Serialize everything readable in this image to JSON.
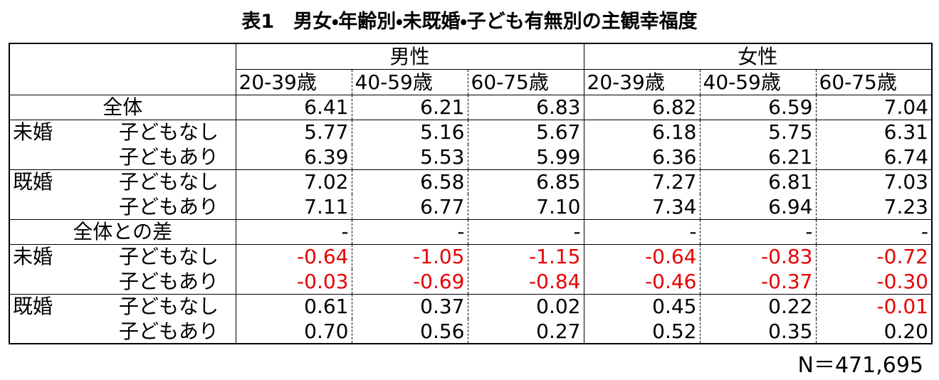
{
  "title": "表1　男女・年齢別・未既婚・子ども有無別の主観幸福度",
  "header": {
    "groups": [
      {
        "name": "男性",
        "ages": [
          "20-39歳",
          "40-59歳",
          "60-75歳"
        ]
      },
      {
        "name": "女性",
        "ages": [
          "20-39歳",
          "40-59歳",
          "60-75歳"
        ]
      }
    ]
  },
  "sections": [
    {
      "label": "全体",
      "values": [
        "6.41",
        "6.21",
        "6.83",
        "6.82",
        "6.59",
        "7.04"
      ]
    },
    {
      "label": "未婚",
      "rows": [
        {
          "label": "子どもなし",
          "values": [
            "5.77",
            "5.16",
            "5.67",
            "6.18",
            "5.75",
            "6.31"
          ]
        },
        {
          "label": "子どもあり",
          "values": [
            "6.39",
            "5.53",
            "5.99",
            "6.36",
            "6.21",
            "6.74"
          ]
        }
      ]
    },
    {
      "label": "既婚",
      "rows": [
        {
          "label": "子どもなし",
          "values": [
            "7.02",
            "6.58",
            "6.85",
            "7.27",
            "6.81",
            "7.03"
          ]
        },
        {
          "label": "子どもあり",
          "values": [
            "7.11",
            "6.77",
            "7.10",
            "7.34",
            "6.94",
            "7.23"
          ]
        }
      ]
    },
    {
      "label": "全体との差",
      "values": [
        "-",
        "-",
        "-",
        "-",
        "-",
        "-"
      ]
    },
    {
      "label": "未婚",
      "rows": [
        {
          "label": "子どもなし",
          "values": [
            "-0.64",
            "-1.05",
            "-1.15",
            "-0.64",
            "-0.83",
            "-0.72"
          ]
        },
        {
          "label": "子どもあり",
          "values": [
            "-0.03",
            "-0.69",
            "-0.84",
            "-0.46",
            "-0.37",
            "-0.30"
          ]
        }
      ]
    },
    {
      "label": "既婚",
      "rows": [
        {
          "label": "子どもなし",
          "values": [
            "0.61",
            "0.37",
            "0.02",
            "0.45",
            "0.22",
            "-0.01"
          ]
        },
        {
          "label": "子どもあり",
          "values": [
            "0.70",
            "0.56",
            "0.27",
            "0.52",
            "0.35",
            "0.20"
          ]
        }
      ]
    }
  ],
  "note": "N＝471,695",
  "negative_color": "#e60000"
}
